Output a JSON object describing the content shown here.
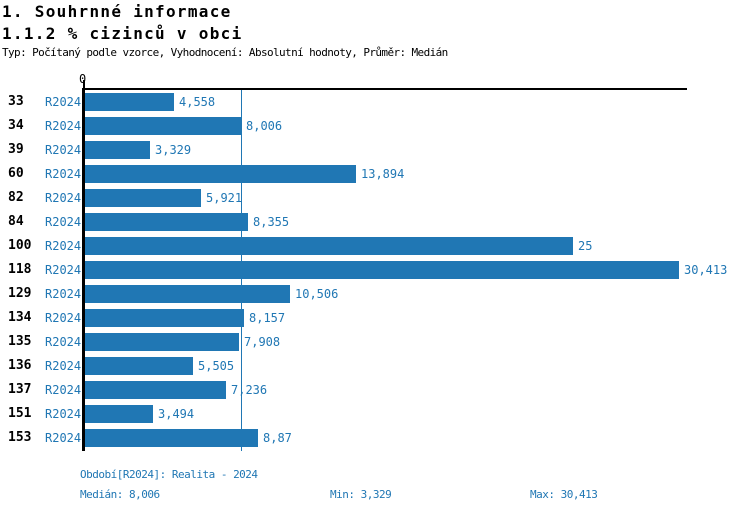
{
  "page": {
    "title": "1. Souhrnné informace",
    "subtitle": "1.1.2 % cizinců v obci",
    "meta": "Typ: Počítaný podle vzorce, Vyhodnocení: Absolutní hodnoty, Průměr: Medián"
  },
  "colors": {
    "bar_blue": "#2077b4",
    "text_blue": "#2077b4",
    "axis_black": "#000000"
  },
  "chart_data": {
    "type": "bar",
    "orientation": "horizontal",
    "title": "1. Souhrnné informace",
    "subtitle": "1.1.2 % cizinců v obci",
    "categories": [
      "33",
      "34",
      "39",
      "60",
      "82",
      "84",
      "100",
      "118",
      "129",
      "134",
      "135",
      "136",
      "137",
      "151",
      "153"
    ],
    "series": [
      {
        "name": "R2024",
        "values": [
          4.558,
          8.006,
          3.329,
          13.894,
          5.921,
          8.355,
          25,
          30.413,
          10.506,
          8.157,
          7.908,
          5.505,
          7.236,
          3.494,
          8.87
        ],
        "value_labels": [
          "4,558",
          "8,006",
          "3,329",
          "13,894",
          "5,921",
          "8,355",
          "25",
          "30,413",
          "10,506",
          "8,157",
          "7,908",
          "5,505",
          "7,236",
          "3,494",
          "8,87"
        ]
      }
    ],
    "xlabel": "",
    "ylabel": "",
    "axis": {
      "zero_label": "0",
      "xlim": [
        0,
        30.413
      ]
    },
    "median_reference_line": 8.006,
    "grid": false,
    "legend_position": "none"
  },
  "footer": {
    "period_line": "Období[R2024]: Realita - 2024",
    "median_label": "Medián: 8,006",
    "min_label": "Min: 3,329",
    "max_label": "Max: 30,413"
  }
}
